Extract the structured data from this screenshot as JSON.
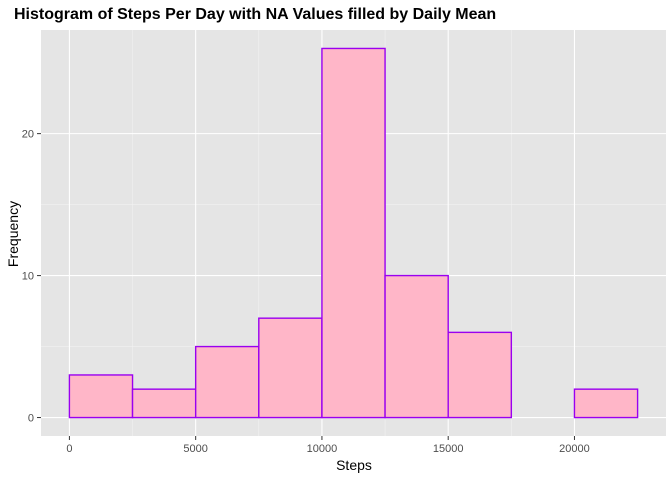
{
  "chart_data": {
    "type": "bar",
    "title": "Histogram of Steps Per Day with NA Values filled by Daily Mean",
    "xlabel": "Steps",
    "ylabel": "Frequency",
    "bins": [
      {
        "start": 0,
        "end": 2500,
        "count": 3
      },
      {
        "start": 2500,
        "end": 5000,
        "count": 2
      },
      {
        "start": 5000,
        "end": 7500,
        "count": 5
      },
      {
        "start": 7500,
        "end": 10000,
        "count": 7
      },
      {
        "start": 10000,
        "end": 12500,
        "count": 26
      },
      {
        "start": 12500,
        "end": 15000,
        "count": 10
      },
      {
        "start": 15000,
        "end": 17500,
        "count": 6
      },
      {
        "start": 17500,
        "end": 20000,
        "count": 0
      },
      {
        "start": 20000,
        "end": 22500,
        "count": 2
      }
    ],
    "x_ticks": [
      0,
      5000,
      10000,
      15000,
      20000
    ],
    "x_tick_labels": [
      "0",
      "5000",
      "10000",
      "15000",
      "20000"
    ],
    "y_ticks": [
      0,
      10,
      20
    ],
    "y_tick_labels": [
      "0",
      "10",
      "20"
    ],
    "xlim": [
      -1125,
      23625
    ],
    "ylim": [
      -1.3,
      27.3
    ],
    "grid": true,
    "colors": {
      "bar_fill": "#ffb6c8",
      "bar_stroke": "#9a00f0",
      "panel": "#e5e5e5",
      "grid_major": "#ffffff",
      "grid_minor": "#f2f2f2"
    }
  }
}
